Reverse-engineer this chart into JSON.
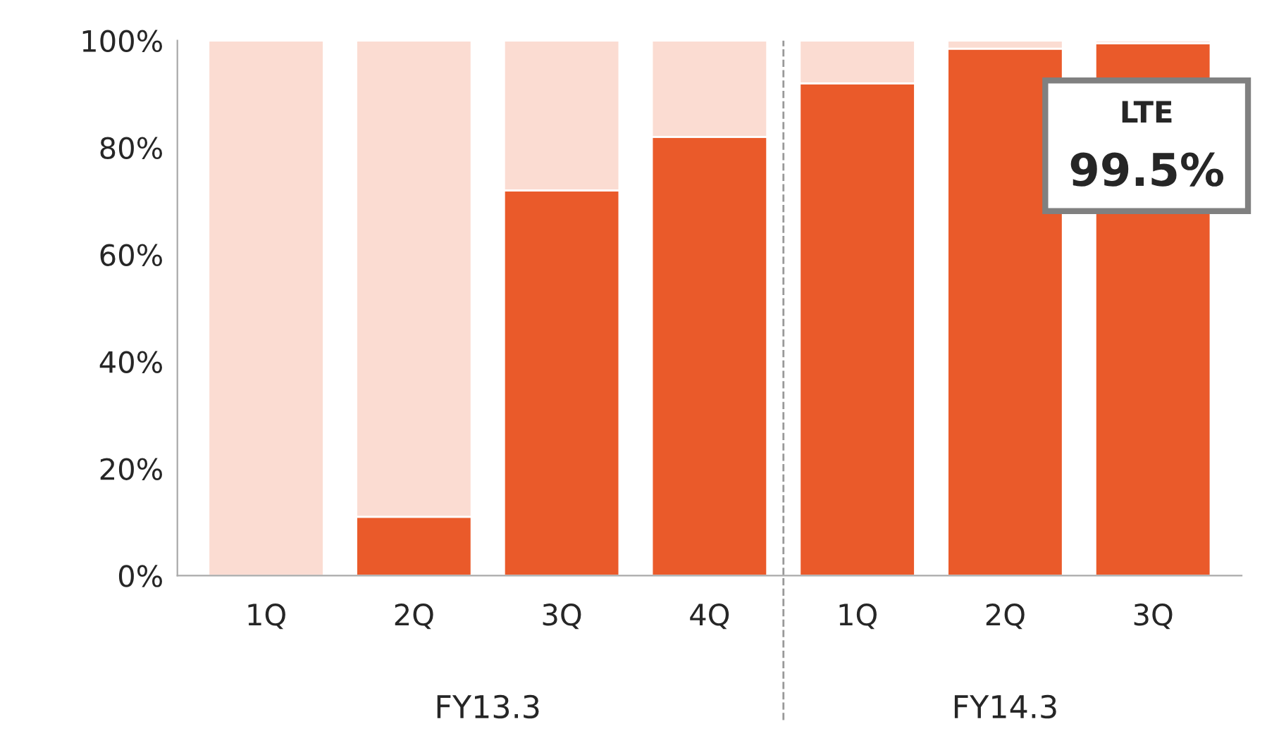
{
  "chart_data": {
    "type": "bar",
    "stacked": true,
    "categories": [
      "1Q",
      "2Q",
      "3Q",
      "4Q",
      "1Q",
      "2Q",
      "3Q"
    ],
    "series": [
      {
        "color": "#ea5a2a",
        "values": [
          0,
          11,
          72,
          82,
          92,
          98.5,
          99.5
        ]
      },
      {
        "color": "#fbdcd2",
        "values": [
          100,
          89,
          28,
          18,
          8,
          1.5,
          0.5
        ]
      }
    ],
    "ylim": [
      0,
      100
    ],
    "yticks": [
      {
        "value": 0,
        "label": "0%"
      },
      {
        "value": 20,
        "label": "20%"
      },
      {
        "value": 40,
        "label": "40%"
      },
      {
        "value": 60,
        "label": "60%"
      },
      {
        "value": 80,
        "label": "80%"
      },
      {
        "value": 100,
        "label": "100%"
      }
    ],
    "annotations": [
      "FY13.3",
      "FY14.3",
      "LTE",
      "99.5%"
    ],
    "grid": false,
    "legend": false
  }
}
